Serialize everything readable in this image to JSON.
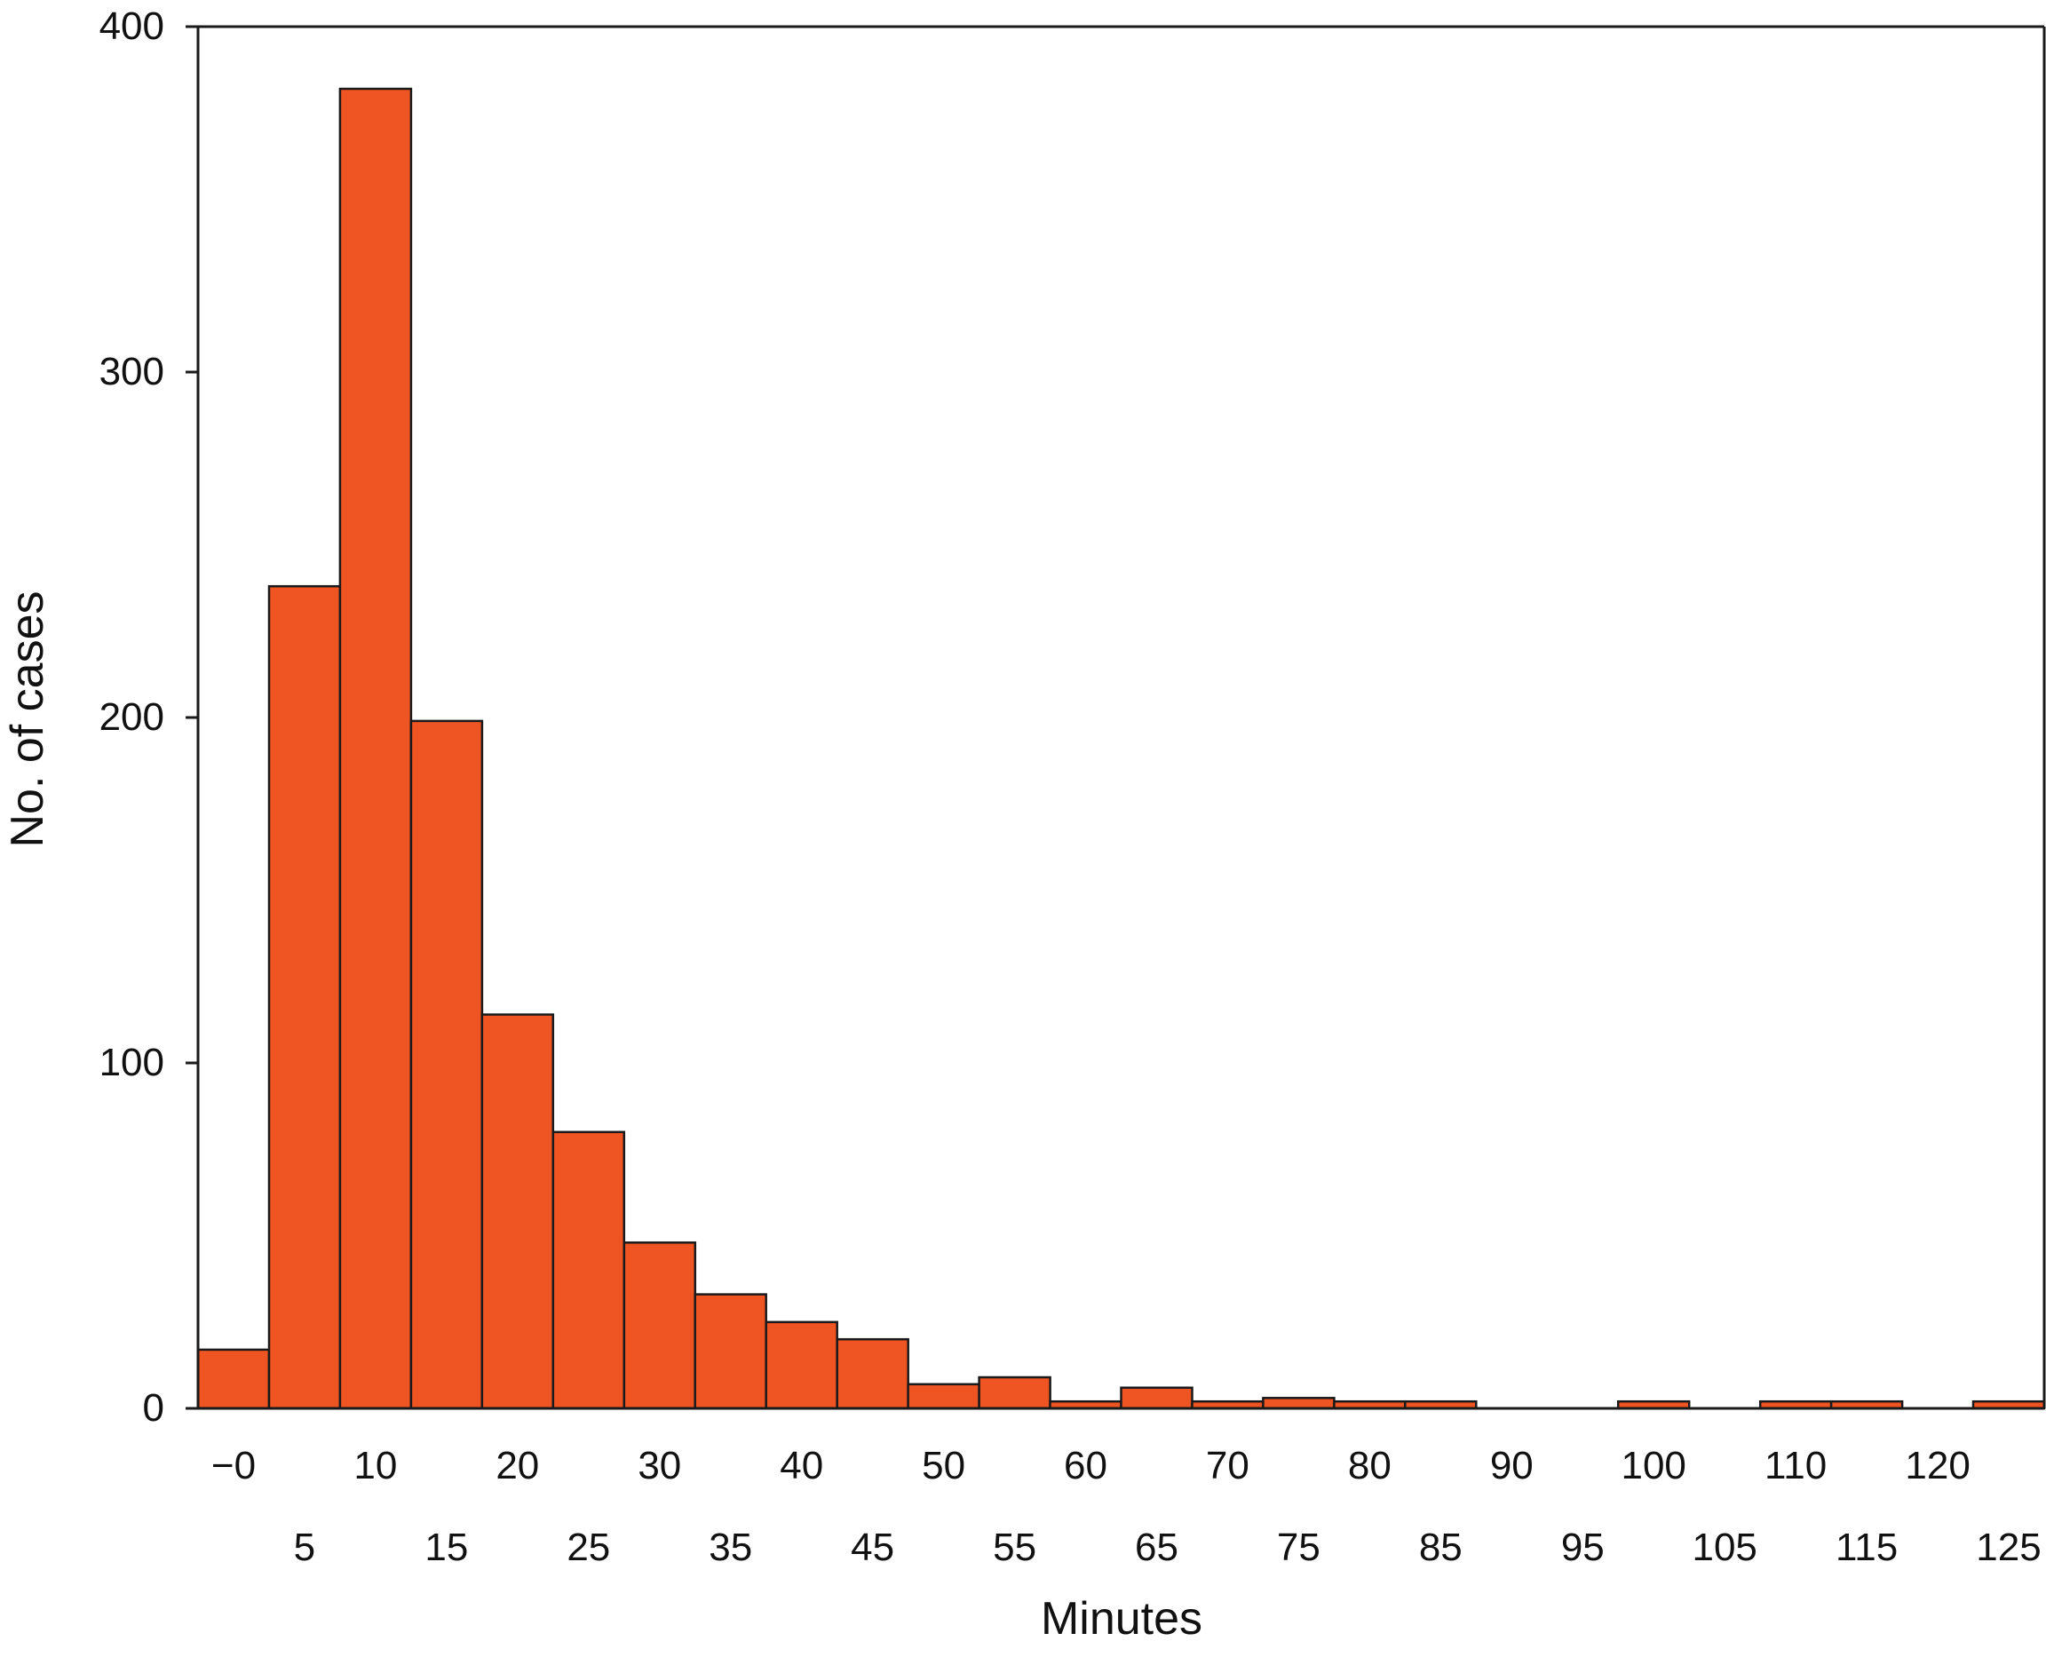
{
  "chart_data": {
    "type": "bar",
    "title": "",
    "xlabel": "Minutes",
    "ylabel": "No. of cases",
    "categories": [
      "−0",
      "5",
      "10",
      "15",
      "20",
      "25",
      "30",
      "35",
      "40",
      "45",
      "50",
      "55",
      "60",
      "65",
      "70",
      "75",
      "80",
      "85",
      "90",
      "95",
      "100",
      "105",
      "110",
      "115",
      "120",
      "125"
    ],
    "values": [
      17,
      238,
      382,
      199,
      114,
      80,
      48,
      33,
      25,
      20,
      7,
      9,
      2,
      6,
      2,
      3,
      2,
      2,
      0,
      0,
      2,
      0,
      2,
      2,
      0,
      2
    ],
    "ylim": [
      0,
      400
    ],
    "yticks": [
      0,
      100,
      200,
      300,
      400
    ],
    "x_ticks_upper_row": [
      "−0",
      "10",
      "20",
      "30",
      "40",
      "50",
      "60",
      "70",
      "80",
      "90",
      "100",
      "110",
      "120"
    ],
    "x_ticks_lower_row": [
      "5",
      "15",
      "25",
      "35",
      "45",
      "55",
      "65",
      "75",
      "85",
      "95",
      "105",
      "115",
      "125"
    ],
    "grid": false,
    "legend": "none",
    "colors": {
      "bar_fill": "#EF5423",
      "bar_stroke": "#1a1a1a",
      "axis": "#1a1a1a"
    }
  }
}
